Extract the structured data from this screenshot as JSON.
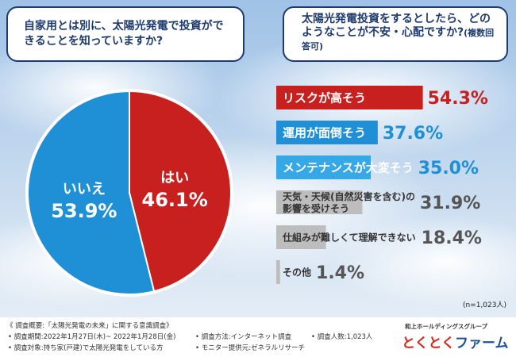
{
  "question_pie": "自家用とは別に、太陽光発電で投資ができることを知っていますか?",
  "question_bar": "太陽光発電投資をするとしたら、どのようなことが不安・心配ですか?",
  "question_bar_sub": "(複数回答可)",
  "sample_note": "(n=1,023人)",
  "colors": {
    "red": "#c8201e",
    "blue": "#1f8fd6",
    "lightblue": "#35a8e5",
    "gray": "#bdbdbd",
    "navy": "#1e3a6e"
  },
  "chart_data": [
    {
      "type": "pie",
      "slices": [
        {
          "label": "はい",
          "value": 46.1,
          "display": "46.1%",
          "color": "#c8201e"
        },
        {
          "label": "いいえ",
          "value": 53.9,
          "display": "53.9%",
          "color": "#1f8fd6"
        }
      ]
    },
    {
      "type": "bar",
      "orientation": "horizontal",
      "categories": [
        "リスクが高そう",
        "運用が面倒そう",
        "メンテナンスが大変そう",
        "天気・天候(自然災害を含む)の影響を受けそう",
        "仕組みが難しくて理解できない",
        "その他"
      ],
      "label_lines": [
        [
          "リスクが高そう"
        ],
        [
          "運用が面倒そう"
        ],
        [
          "メンテナンスが大変そう"
        ],
        [
          "天気・天候(自然災害を含む)の",
          "影響を受けそう"
        ],
        [
          "仕組みが難しくて理解できない"
        ],
        [
          "その他"
        ]
      ],
      "values": [
        54.3,
        37.6,
        35.0,
        31.9,
        18.4,
        1.4
      ],
      "display_values": [
        "54.3%",
        "37.6%",
        "35.0%",
        "31.9%",
        "18.4%",
        "1.4%"
      ],
      "colors": [
        "#c8201e",
        "#1f8fd6",
        "#35a8e5",
        "#bdbdbd",
        "#bdbdbd",
        "#bdbdbd"
      ]
    }
  ],
  "footer": {
    "survey_title": "《 調査概要:「太陽光発電の未来」に関する意識調査》",
    "period": "• 調査期間:2022年1月27日(木)~ 2022年1月28日(金)",
    "target": "• 調査対象:持ち家(戸建)で太陽光発電をしている方",
    "method": "• 調査方法:インターネット調査",
    "provider": "• モニター提供元:ゼネラルリサーチ",
    "count": "• 調査人数:1,023人"
  },
  "brand": {
    "sub": "和上ホールディングスグループ",
    "name_a": "とくとく",
    "name_b": "ファーム"
  }
}
